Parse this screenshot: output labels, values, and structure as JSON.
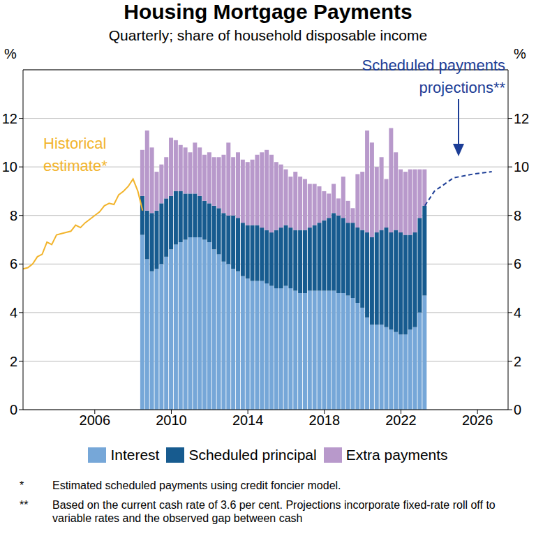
{
  "chart_data": {
    "type": "bar",
    "title": "Housing Mortgage Payments",
    "subtitle": "Quarterly; share of household disposable income",
    "y_label": "%",
    "stacked": true,
    "grid": true,
    "legend": "bottom",
    "xlim": [
      2002.25,
      2027.6
    ],
    "xticks": [
      2006,
      2010,
      2014,
      2018,
      2022,
      2026
    ],
    "ylim": [
      0,
      14
    ],
    "yticks": [
      0,
      2,
      4,
      6,
      8,
      10,
      12
    ],
    "y2lim": [
      0,
      14
    ],
    "y2ticks": [
      0,
      2,
      4,
      6,
      8,
      10,
      12
    ],
    "series": [
      {
        "name": "Interest",
        "type": "bar",
        "color": "#76a7d8",
        "x": [
          2008.5,
          2008.75,
          2009,
          2009.25,
          2009.5,
          2009.75,
          2010,
          2010.25,
          2010.5,
          2010.75,
          2011,
          2011.25,
          2011.5,
          2011.75,
          2012,
          2012.25,
          2012.5,
          2012.75,
          2013,
          2013.25,
          2013.5,
          2013.75,
          2014,
          2014.25,
          2014.5,
          2014.75,
          2015,
          2015.25,
          2015.5,
          2015.75,
          2016,
          2016.25,
          2016.5,
          2016.75,
          2017,
          2017.25,
          2017.5,
          2017.75,
          2018,
          2018.25,
          2018.5,
          2018.75,
          2019,
          2019.25,
          2019.5,
          2019.75,
          2020,
          2020.25,
          2020.5,
          2020.75,
          2021,
          2021.25,
          2021.5,
          2021.75,
          2022,
          2022.25,
          2022.5,
          2022.75,
          2023,
          2023.25
        ],
        "values": [
          7.2,
          6.2,
          5.7,
          5.8,
          6.0,
          6.3,
          6.6,
          6.8,
          6.9,
          7.0,
          7.1,
          7.1,
          7.1,
          7.0,
          6.9,
          6.6,
          6.4,
          6.1,
          6.0,
          5.8,
          5.7,
          5.5,
          5.4,
          5.3,
          5.3,
          5.3,
          5.2,
          5.1,
          5.0,
          5.0,
          5.1,
          5.0,
          4.9,
          4.8,
          4.8,
          4.9,
          4.9,
          4.9,
          4.9,
          4.9,
          4.9,
          4.8,
          4.8,
          4.7,
          4.6,
          4.4,
          4.2,
          3.8,
          3.5,
          3.5,
          3.5,
          3.4,
          3.3,
          3.2,
          3.1,
          3.1,
          3.3,
          3.4,
          4.0,
          4.7
        ]
      },
      {
        "name": "Scheduled principal",
        "type": "bar",
        "color": "#175b8f",
        "x": [
          2008.5,
          2008.75,
          2009,
          2009.25,
          2009.5,
          2009.75,
          2010,
          2010.25,
          2010.5,
          2010.75,
          2011,
          2011.25,
          2011.5,
          2011.75,
          2012,
          2012.25,
          2012.5,
          2012.75,
          2013,
          2013.25,
          2013.5,
          2013.75,
          2014,
          2014.25,
          2014.5,
          2014.75,
          2015,
          2015.25,
          2015.5,
          2015.75,
          2016,
          2016.25,
          2016.5,
          2016.75,
          2017,
          2017.25,
          2017.5,
          2017.75,
          2018,
          2018.25,
          2018.5,
          2018.75,
          2019,
          2019.25,
          2019.5,
          2019.75,
          2020,
          2020.25,
          2020.5,
          2020.75,
          2021,
          2021.25,
          2021.5,
          2021.75,
          2022,
          2022.25,
          2022.5,
          2022.75,
          2023,
          2023.25
        ],
        "values": [
          1.6,
          2.0,
          2.4,
          2.4,
          2.5,
          2.4,
          2.2,
          2.2,
          2.1,
          1.9,
          1.8,
          1.8,
          1.7,
          1.6,
          1.6,
          1.8,
          1.9,
          2.0,
          2.0,
          2.2,
          2.2,
          2.2,
          2.2,
          2.3,
          2.3,
          2.2,
          2.2,
          2.2,
          2.4,
          2.5,
          2.5,
          2.5,
          2.5,
          2.6,
          2.6,
          2.6,
          2.7,
          2.8,
          2.9,
          3.0,
          3.2,
          3.2,
          3.1,
          3.0,
          3.1,
          3.1,
          3.2,
          3.5,
          3.6,
          3.8,
          3.9,
          4.1,
          4.0,
          4.2,
          4.2,
          4.1,
          3.9,
          3.9,
          3.9,
          3.7
        ]
      },
      {
        "name": "Extra payments",
        "type": "bar",
        "color": "#b899cb",
        "x": [
          2008.5,
          2008.75,
          2009,
          2009.25,
          2009.5,
          2009.75,
          2010,
          2010.25,
          2010.5,
          2010.75,
          2011,
          2011.25,
          2011.5,
          2011.75,
          2012,
          2012.25,
          2012.5,
          2012.75,
          2013,
          2013.25,
          2013.5,
          2013.75,
          2014,
          2014.25,
          2014.5,
          2014.75,
          2015,
          2015.25,
          2015.5,
          2015.75,
          2016,
          2016.25,
          2016.5,
          2016.75,
          2017,
          2017.25,
          2017.5,
          2017.75,
          2018,
          2018.25,
          2018.5,
          2018.75,
          2019,
          2019.25,
          2019.5,
          2019.75,
          2020,
          2020.25,
          2020.5,
          2020.75,
          2021,
          2021.25,
          2021.5,
          2021.75,
          2022,
          2022.25,
          2022.5,
          2022.75,
          2023,
          2023.25
        ],
        "values": [
          1.9,
          3.3,
          2.7,
          1.6,
          1.6,
          1.7,
          2.4,
          2.1,
          1.9,
          1.9,
          1.7,
          2.1,
          2.0,
          1.9,
          2.1,
          2.0,
          2.1,
          2.4,
          3.0,
          2.4,
          2.7,
          2.6,
          2.6,
          2.7,
          2.9,
          3.1,
          3.3,
          3.2,
          2.8,
          2.6,
          2.3,
          2.1,
          2.4,
          2.2,
          2.1,
          1.8,
          1.7,
          1.5,
          1.2,
          1.0,
          1.2,
          0.7,
          1.7,
          0.9,
          0.6,
          2.2,
          2.4,
          4.2,
          3.9,
          2.7,
          3.0,
          2.0,
          4.3,
          3.2,
          2.6,
          2.6,
          2.7,
          2.6,
          2.0,
          1.5
        ]
      },
      {
        "name": "Historical estimate*",
        "type": "line",
        "color": "#f2b42c",
        "line_style": "solid",
        "x": [
          2002.25,
          2002.5,
          2002.75,
          2003,
          2003.25,
          2003.5,
          2003.75,
          2004,
          2004.25,
          2004.5,
          2004.75,
          2005,
          2005.25,
          2005.5,
          2005.75,
          2006,
          2006.25,
          2006.5,
          2006.75,
          2007,
          2007.25,
          2007.5,
          2007.75,
          2008,
          2008.25,
          2008.5
        ],
        "values": [
          5.8,
          5.85,
          6.0,
          6.3,
          6.4,
          6.9,
          6.8,
          7.2,
          7.25,
          7.3,
          7.35,
          7.6,
          7.5,
          7.7,
          7.85,
          8.0,
          8.15,
          8.4,
          8.5,
          8.45,
          8.85,
          9.0,
          9.2,
          9.5,
          9.0,
          8.2
        ]
      },
      {
        "name": "Scheduled payments projections**",
        "type": "line",
        "color": "#1c3d96",
        "line_style": "dashed",
        "x": [
          2023.25,
          2023.75,
          2024.75,
          2025.75,
          2026.75
        ],
        "values": [
          8.4,
          9.0,
          9.55,
          9.7,
          9.8
        ]
      }
    ],
    "footnotes": [
      {
        "mark": "*",
        "text": "Estimated scheduled payments using credit foncier model."
      },
      {
        "mark": "**",
        "text": "Based on the current cash rate of 3.6 per cent. Projections incorporate fixed-rate roll off to variable rates and the observed gap between cash"
      }
    ]
  }
}
